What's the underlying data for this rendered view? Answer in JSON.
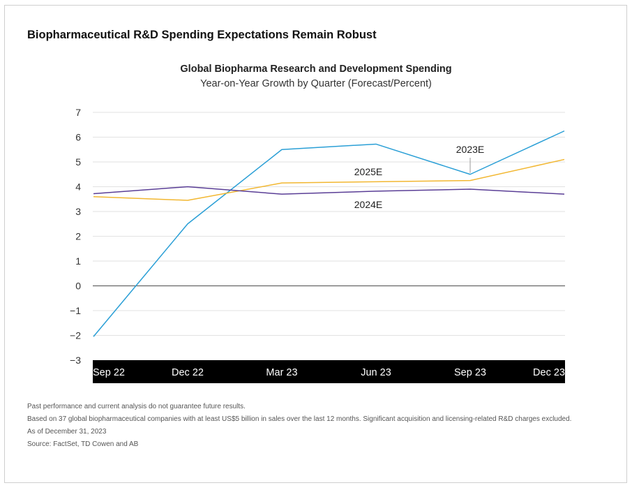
{
  "headline": "Biopharmaceutical R&D Spending Expectations Remain Robust",
  "notes": [
    "Past performance and current analysis do not guarantee future results.",
    "Based on 37 global biopharmaceutical companies with at least US$5 billion in sales over the last 12 months. Significant acquisition and licensing-related R&D charges excluded.",
    "As of December 31, 2023",
    "Source: FactSet, TD Cowen and AB"
  ],
  "chart_data": {
    "type": "line",
    "title": "Global Biopharma Research and Development Spending",
    "subtitle": "Year-on-Year Growth by Quarter (Forecast/Percent)",
    "categories": [
      "Sep 22",
      "Dec 22",
      "Mar 23",
      "Jun 23",
      "Sep 23",
      "Dec 23"
    ],
    "ylim": [
      -3,
      7
    ],
    "yticks": [
      "7",
      "6",
      "5",
      "4",
      "3",
      "2",
      "1",
      "0",
      "−1",
      "−2",
      "−3"
    ],
    "grid": true,
    "series": [
      {
        "name": "2023E",
        "color": "#2a9fd6",
        "values": [
          -2.05,
          2.5,
          5.5,
          5.72,
          4.5,
          6.25
        ]
      },
      {
        "name": "2025E",
        "color": "#f2b731",
        "values": [
          3.6,
          3.45,
          4.15,
          4.2,
          4.25,
          5.1
        ]
      },
      {
        "name": "2024E",
        "color": "#5a3e96",
        "values": [
          3.72,
          4.0,
          3.7,
          3.82,
          3.9,
          3.7
        ]
      }
    ]
  }
}
